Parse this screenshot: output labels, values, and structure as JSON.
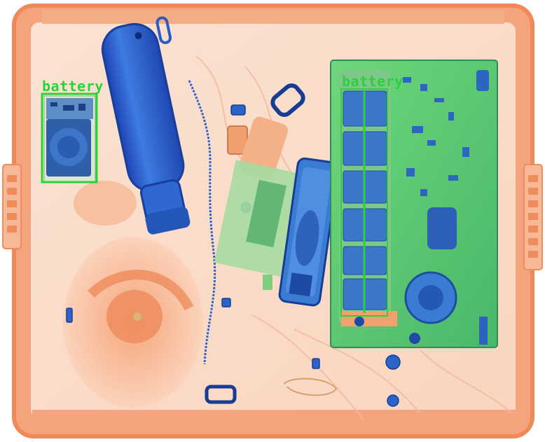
{
  "image": {
    "kind": "x-ray baggage scan",
    "palette": {
      "organic": "#f39a6b",
      "organic_light": "#fbd7c0",
      "metal": "#2c63c9",
      "metal_dark": "#1b3f98",
      "mixed": "#7fd680",
      "detection": "#2bd33a"
    }
  },
  "detections": [
    {
      "label": "battery"
    },
    {
      "label": "battery"
    }
  ]
}
